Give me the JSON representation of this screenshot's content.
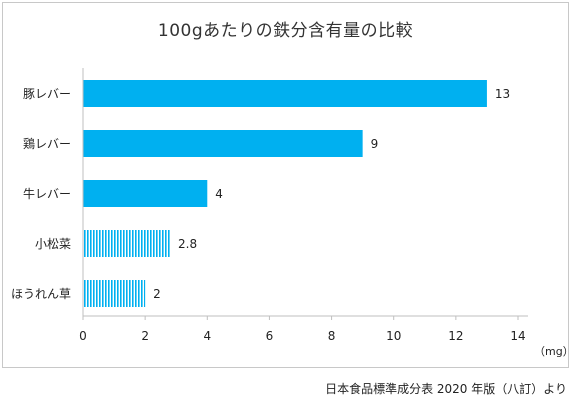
{
  "chart_data": {
    "type": "bar",
    "orientation": "horizontal",
    "title": "100gあたりの鉄分含有量の比較",
    "categories": [
      "豚レバー",
      "鶏レバー",
      "牛レバー",
      "小松菜",
      "ほうれん草"
    ],
    "values": [
      13,
      9,
      4,
      2.8,
      2
    ],
    "value_labels": [
      "13",
      "9",
      "4",
      "2.8",
      "2"
    ],
    "bar_style": [
      "solid",
      "solid",
      "solid",
      "striped",
      "striped"
    ],
    "xlim": [
      0,
      14
    ],
    "x_ticks": [
      "0",
      "2",
      "4",
      "6",
      "8",
      "10",
      "12",
      "14"
    ],
    "unit": "（mg）",
    "grid": false,
    "colors": {
      "bar": "#00b0f0",
      "axis": "#bfbfbf",
      "text": "#222222"
    }
  },
  "footer": {
    "source": "日本食品標準成分表 2020 年版（八訂）より"
  }
}
